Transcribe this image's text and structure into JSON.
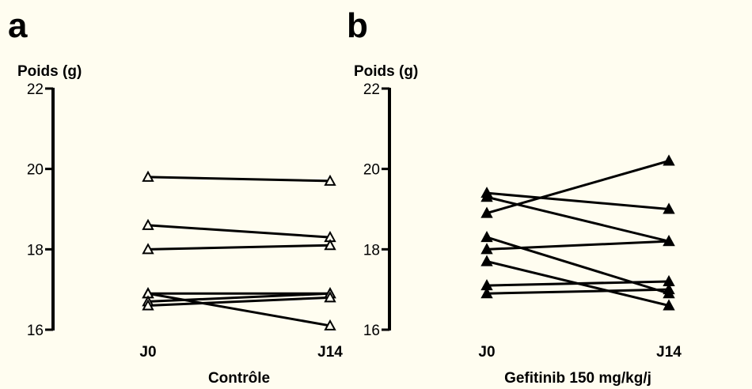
{
  "panels": [
    {
      "letter": "a"
    },
    {
      "letter": "b"
    }
  ],
  "chart_data": [
    {
      "type": "line",
      "title": "",
      "ylabel": "Poids (g)",
      "xlabel": "Contrôle",
      "categories": [
        "J0",
        "J14"
      ],
      "ylim": [
        16,
        22
      ],
      "yticks": [
        16,
        18,
        20,
        22
      ],
      "marker": "open-triangle",
      "series": [
        {
          "values": [
            19.8,
            19.7
          ]
        },
        {
          "values": [
            18.6,
            18.3
          ]
        },
        {
          "values": [
            18.0,
            18.1
          ]
        },
        {
          "values": [
            16.9,
            16.9
          ]
        },
        {
          "values": [
            16.9,
            16.1
          ]
        },
        {
          "values": [
            16.7,
            16.9
          ]
        },
        {
          "values": [
            16.6,
            16.8
          ]
        }
      ]
    },
    {
      "type": "line",
      "title": "",
      "ylabel": "Poids (g)",
      "xlabel": "Gefitinib 150 mg/kg/j",
      "categories": [
        "J0",
        "J14"
      ],
      "ylim": [
        16,
        22
      ],
      "yticks": [
        16,
        18,
        20,
        22
      ],
      "marker": "filled-triangle",
      "series": [
        {
          "values": [
            18.9,
            20.2
          ]
        },
        {
          "values": [
            19.4,
            19.0
          ]
        },
        {
          "values": [
            19.3,
            18.2
          ]
        },
        {
          "values": [
            18.0,
            18.2
          ]
        },
        {
          "values": [
            18.3,
            16.9
          ]
        },
        {
          "values": [
            17.7,
            16.6
          ]
        },
        {
          "values": [
            17.1,
            17.2
          ]
        },
        {
          "values": [
            16.9,
            17.0
          ]
        }
      ]
    }
  ]
}
